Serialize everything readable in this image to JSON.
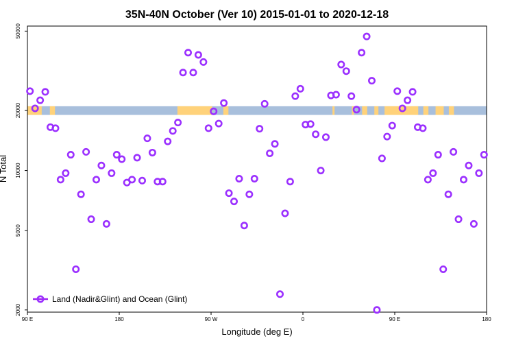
{
  "chart_data": {
    "type": "scatter",
    "title": "35N-40N October (Ver 10)   2015-01-01 to 2020-12-18",
    "xlabel": "Longitude (deg E)",
    "ylabel": "N Total",
    "y_scale": "log",
    "ylim": [
      1950,
      53000
    ],
    "xlim": [
      90,
      540
    ],
    "x_ticks": [
      {
        "value": 90,
        "label": "90 E"
      },
      {
        "value": 180,
        "label": "180"
      },
      {
        "value": 270,
        "label": "90 W"
      },
      {
        "value": 360,
        "label": "0"
      },
      {
        "value": 450,
        "label": "90 E"
      },
      {
        "value": 540,
        "label": "180"
      }
    ],
    "y_ticks": [
      {
        "value": 2000,
        "label": "2000"
      },
      {
        "value": 5000,
        "label": "5000"
      },
      {
        "value": 10000,
        "label": "10000"
      },
      {
        "value": 20000,
        "label": "20000"
      },
      {
        "value": 50000,
        "label": "50000"
      }
    ],
    "legend": {
      "position": "bottom-left"
    },
    "colors": {
      "series": "#9b30ff",
      "land": "#ffd27a",
      "ocean": "#a8bfdc",
      "legend_line": "#a020f0"
    },
    "series": [
      {
        "name": "Land (Nadir&Glint) and Ocean (Glint)",
        "x": [
          92.5,
          97.5,
          102.5,
          107.5,
          112.5,
          117.5,
          122.5,
          127.5,
          132.5,
          137.5,
          142.5,
          147.5,
          152.5,
          157.5,
          162.5,
          167.5,
          172.5,
          177.5,
          182.5,
          187.5,
          192.5,
          197.5,
          202.5,
          207.5,
          212.5,
          217.5,
          222.5,
          227.5,
          232.5,
          237.5,
          242.5,
          247.5,
          252.5,
          257.5,
          262.5,
          267.5,
          272.5,
          277.5,
          282.5,
          287.5,
          292.5,
          297.5,
          302.5,
          307.5,
          312.5,
          317.5,
          322.5,
          327.5,
          332.5,
          337.5,
          342.5,
          347.5,
          352.5,
          357.5,
          362.5,
          367.5,
          372.5,
          377.5,
          382.5,
          387.5,
          392.5,
          397.5,
          402.5,
          407.5,
          412.5,
          417.5,
          422.5,
          427.5,
          432.5,
          437.5,
          442.5,
          447.5,
          452.5,
          457.5,
          462.5,
          467.5,
          472.5,
          477.5,
          482.5,
          487.5,
          492.5,
          497.5,
          502.5,
          507.5,
          512.5,
          517.5,
          522.5,
          527.5,
          532.5,
          537.5
        ],
        "values": [
          25000,
          20500,
          22500,
          24800,
          16500,
          16300,
          9000,
          9700,
          12000,
          3200,
          7600,
          12400,
          5700,
          9000,
          10600,
          5400,
          9700,
          12000,
          11400,
          8700,
          9000,
          11600,
          8900,
          14500,
          12300,
          8800,
          8800,
          14000,
          15800,
          17400,
          31000,
          39000,
          31000,
          38000,
          35000,
          16300,
          19800,
          17200,
          21800,
          7700,
          7000,
          9100,
          5300,
          7600,
          9100,
          16200,
          21600,
          12200,
          13600,
          2400,
          6100,
          8800,
          23600,
          25700,
          17000,
          17100,
          15200,
          10000,
          14700,
          23800,
          24000,
          34000,
          31500,
          23600,
          20200,
          39000,
          47000,
          28200,
          2000,
          11500,
          14800,
          16800,
          25000,
          20500,
          22500,
          24800,
          16500,
          16300,
          9000,
          9700,
          12000,
          3200,
          7600,
          12400,
          5700,
          9000,
          10600,
          5400,
          9700,
          12000
        ]
      }
    ]
  }
}
